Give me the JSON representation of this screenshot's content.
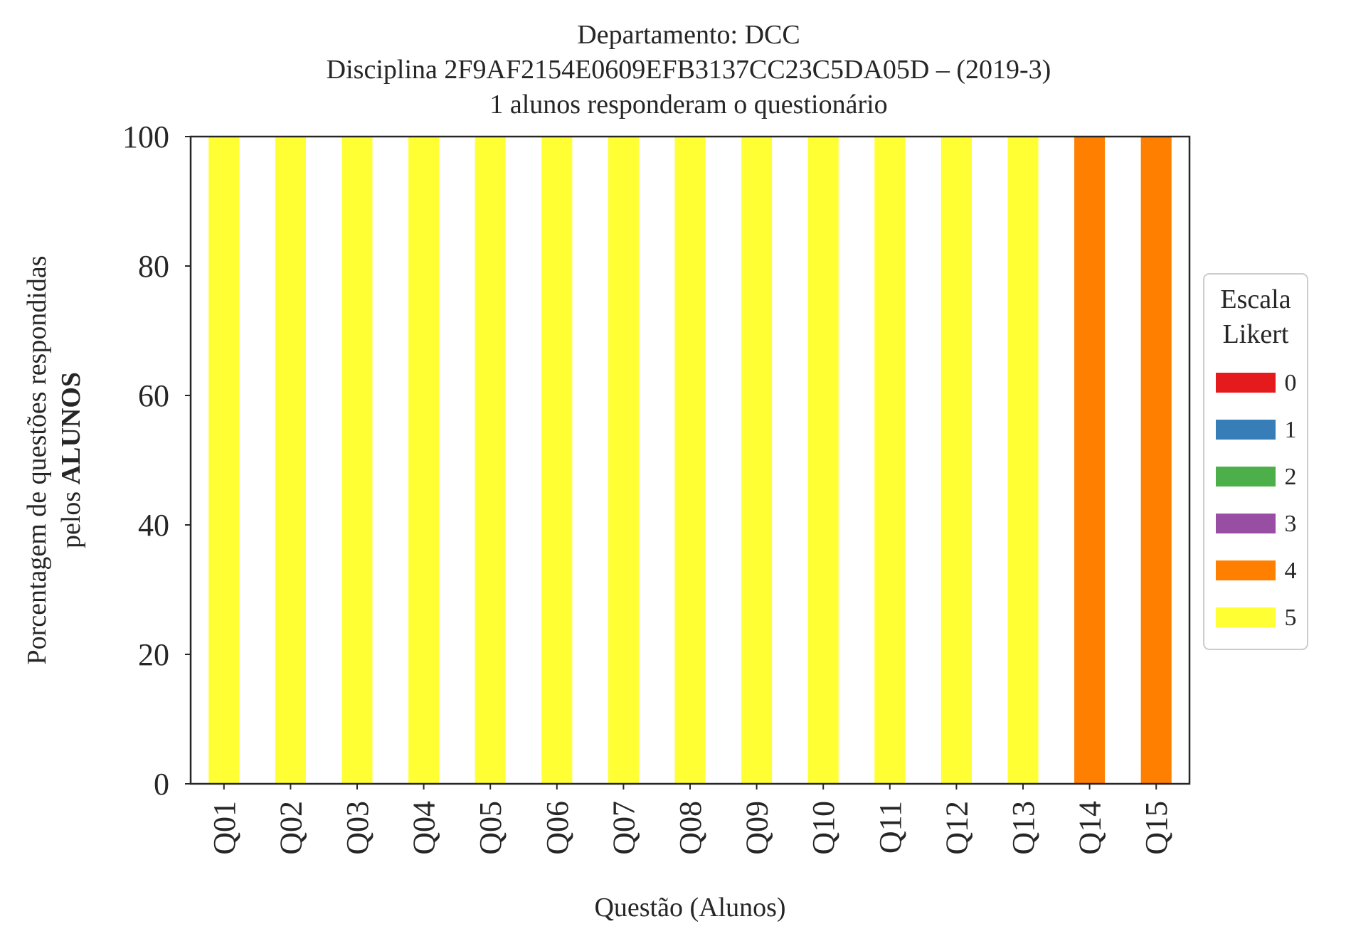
{
  "chart_data": {
    "type": "bar",
    "stacked": true,
    "title_lines": [
      "Departamento: DCC",
      "Disciplina 2F9AF2154E0609EFB3137CC23C5DA05D – (2019-3)",
      "1 alunos responderam o questionário"
    ],
    "xlabel": "Questão (Alunos)",
    "ylabel_line1": "Porcentagem de questões respondidas",
    "ylabel_line2_prefix": "pelos ",
    "ylabel_line2_bold": "ALUNOS",
    "ylim": [
      0,
      100
    ],
    "yticks": [
      0,
      20,
      40,
      60,
      80,
      100
    ],
    "grid": false,
    "categories": [
      "Q01",
      "Q02",
      "Q03",
      "Q04",
      "Q05",
      "Q06",
      "Q07",
      "Q08",
      "Q09",
      "Q10",
      "Q11",
      "Q12",
      "Q13",
      "Q14",
      "Q15"
    ],
    "legend": {
      "title_lines": [
        "Escala",
        "Likert"
      ],
      "placement": "right-center outside"
    },
    "series": [
      {
        "name": "0",
        "color": "#e41a1c",
        "values": [
          0,
          0,
          0,
          0,
          0,
          0,
          0,
          0,
          0,
          0,
          0,
          0,
          0,
          0,
          0
        ]
      },
      {
        "name": "1",
        "color": "#377eb8",
        "values": [
          0,
          0,
          0,
          0,
          0,
          0,
          0,
          0,
          0,
          0,
          0,
          0,
          0,
          0,
          0
        ]
      },
      {
        "name": "2",
        "color": "#4daf4a",
        "values": [
          0,
          0,
          0,
          0,
          0,
          0,
          0,
          0,
          0,
          0,
          0,
          0,
          0,
          0,
          0
        ]
      },
      {
        "name": "3",
        "color": "#984ea3",
        "values": [
          0,
          0,
          0,
          0,
          0,
          0,
          0,
          0,
          0,
          0,
          0,
          0,
          0,
          0,
          0
        ]
      },
      {
        "name": "4",
        "color": "#ff7f00",
        "values": [
          0,
          0,
          0,
          0,
          0,
          0,
          0,
          0,
          0,
          0,
          0,
          0,
          0,
          100,
          100
        ]
      },
      {
        "name": "5",
        "color": "#ffff33",
        "values": [
          100,
          100,
          100,
          100,
          100,
          100,
          100,
          100,
          100,
          100,
          100,
          100,
          100,
          0,
          0
        ]
      }
    ]
  }
}
